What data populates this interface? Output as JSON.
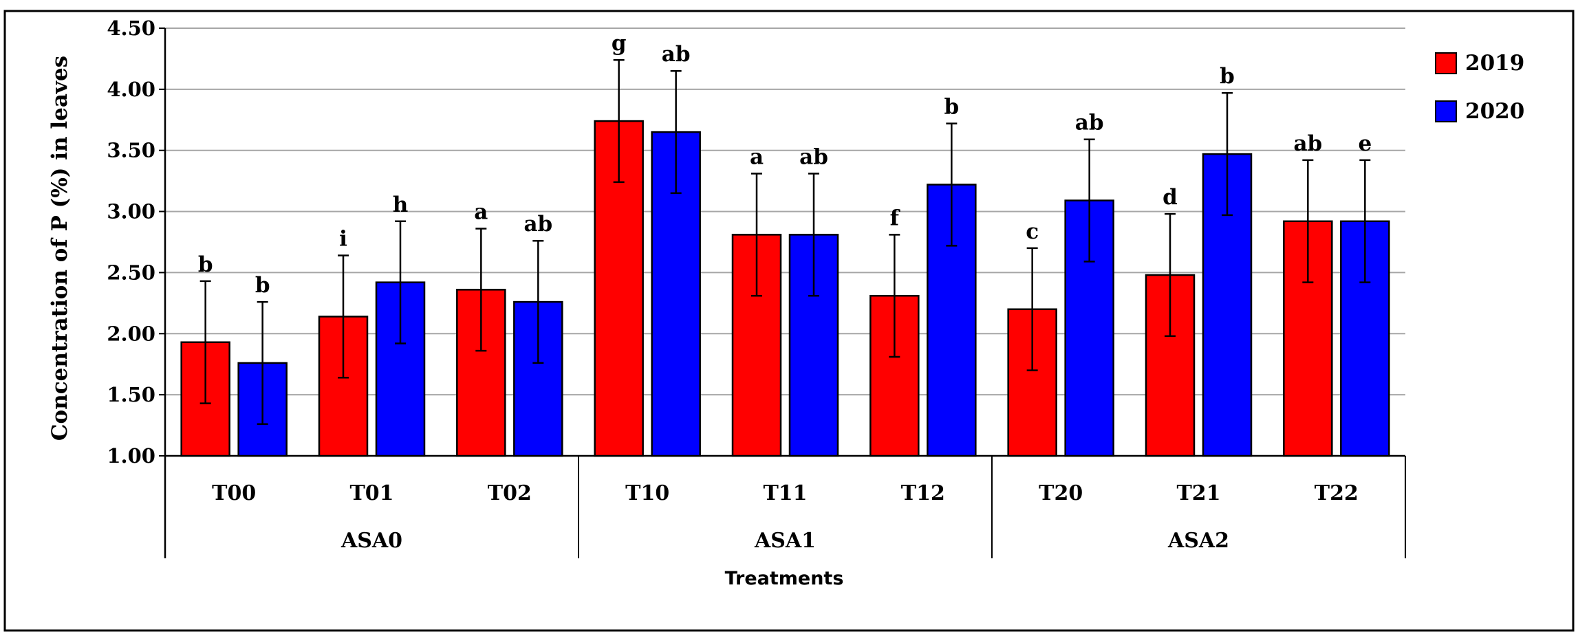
{
  "chart_data": {
    "type": "bar",
    "title": "",
    "xlabel": "Treatments",
    "ylabel": "Concentration of P (%) in leaves",
    "ylim": [
      1.0,
      4.5
    ],
    "y_ticks": [
      "1.00",
      "1.50",
      "2.00",
      "2.50",
      "3.00",
      "3.50",
      "4.00",
      "4.50"
    ],
    "grid": true,
    "legend_position": "top-right",
    "categories": [
      "T00",
      "T01",
      "T02",
      "T10",
      "T11",
      "T12",
      "T20",
      "T21",
      "T22"
    ],
    "groups": [
      {
        "label": "ASA0",
        "categories": [
          "T00",
          "T01",
          "T02"
        ]
      },
      {
        "label": "ASA1",
        "categories": [
          "T10",
          "T11",
          "T12"
        ]
      },
      {
        "label": "ASA2",
        "categories": [
          "T20",
          "T21",
          "T22"
        ]
      }
    ],
    "series": [
      {
        "name": "2019",
        "color": "#ff0000",
        "values": [
          1.93,
          2.14,
          2.36,
          3.74,
          2.81,
          2.31,
          2.2,
          2.48,
          2.92
        ],
        "error": [
          0.5,
          0.5,
          0.5,
          0.5,
          0.5,
          0.5,
          0.5,
          0.5,
          0.5
        ],
        "letters": [
          "b",
          "i",
          "a",
          "g",
          "a",
          "f",
          "c",
          "d",
          "ab"
        ]
      },
      {
        "name": "2020",
        "color": "#0000ff",
        "values": [
          1.76,
          2.42,
          2.26,
          3.65,
          2.81,
          3.22,
          3.09,
          3.47,
          2.92
        ],
        "error": [
          0.5,
          0.5,
          0.5,
          0.5,
          0.5,
          0.5,
          0.5,
          0.5,
          0.5
        ],
        "letters": [
          "b",
          "h",
          "ab",
          "ab",
          "ab",
          "b",
          "ab",
          "b",
          "e"
        ]
      }
    ]
  }
}
